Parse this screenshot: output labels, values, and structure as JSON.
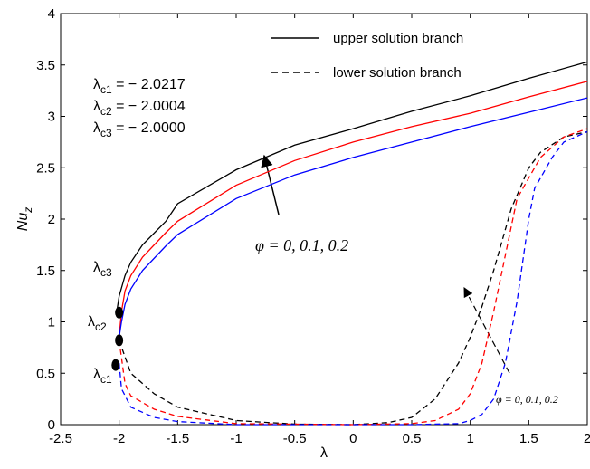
{
  "chart_data": {
    "type": "line",
    "xlabel": "λ",
    "ylabel": {
      "base": "Nu",
      "sub": "z"
    },
    "xlim": [
      -2.5,
      2
    ],
    "xticks": [
      -2.5,
      -2,
      -1.5,
      -1,
      -0.5,
      0,
      0.5,
      1,
      1.5,
      2
    ],
    "ylim": [
      0,
      4
    ],
    "yticks": [
      0,
      0.5,
      1,
      1.5,
      2,
      2.5,
      3,
      3.5,
      4
    ],
    "legend": [
      {
        "label": "upper solution branch",
        "dash": false
      },
      {
        "label": "lower solution branch",
        "dash": true
      }
    ],
    "series": [
      {
        "color": "#000000",
        "dash": false,
        "x": [
          -2.0217,
          -2.0,
          -1.95,
          -1.9,
          -1.8,
          -1.6,
          -1.5,
          -1.0,
          -0.5,
          0,
          0.5,
          1.0,
          1.5,
          2.0
        ],
        "values": [
          1.09,
          1.25,
          1.45,
          1.58,
          1.75,
          1.98,
          2.15,
          2.48,
          2.72,
          2.88,
          3.05,
          3.2,
          3.37,
          3.53
        ]
      },
      {
        "color": "#ff0000",
        "dash": false,
        "x": [
          -2.0004,
          -1.98,
          -1.95,
          -1.9,
          -1.8,
          -1.6,
          -1.5,
          -1.0,
          -0.5,
          0,
          0.5,
          1.0,
          1.5,
          2.0
        ],
        "values": [
          0.85,
          1.1,
          1.3,
          1.45,
          1.63,
          1.87,
          1.98,
          2.33,
          2.57,
          2.75,
          2.9,
          3.03,
          3.19,
          3.34
        ]
      },
      {
        "color": "#0000ff",
        "dash": false,
        "x": [
          -2.0,
          -1.98,
          -1.95,
          -1.9,
          -1.8,
          -1.6,
          -1.5,
          -1.0,
          -0.5,
          0,
          0.5,
          1.0,
          1.5,
          2.0
        ],
        "values": [
          0.85,
          1.0,
          1.17,
          1.32,
          1.5,
          1.74,
          1.85,
          2.2,
          2.43,
          2.6,
          2.75,
          2.9,
          3.04,
          3.18
        ]
      },
      {
        "color": "#000000",
        "dash": true,
        "x": [
          -2.0,
          -1.9,
          -1.7,
          -1.5,
          -1.0,
          -0.5,
          0,
          0.3,
          0.5,
          0.7,
          0.9,
          1.0,
          1.1,
          1.2,
          1.35,
          1.5,
          1.6,
          1.8,
          2.0
        ],
        "values": [
          0.82,
          0.5,
          0.3,
          0.17,
          0.04,
          0.005,
          0,
          0.02,
          0.07,
          0.25,
          0.6,
          0.85,
          1.15,
          1.5,
          2.1,
          2.5,
          2.65,
          2.8,
          2.85
        ]
      },
      {
        "color": "#ff0000",
        "dash": true,
        "x": [
          -2.0,
          -1.95,
          -1.9,
          -1.7,
          -1.5,
          -1.0,
          0,
          0.5,
          0.7,
          0.9,
          1.0,
          1.1,
          1.2,
          1.3,
          1.4,
          1.5,
          1.6,
          1.8,
          2.0
        ],
        "values": [
          0.82,
          0.4,
          0.28,
          0.15,
          0.08,
          0.01,
          0,
          0.01,
          0.04,
          0.15,
          0.3,
          0.6,
          1.1,
          1.65,
          2.2,
          2.4,
          2.6,
          2.8,
          2.88
        ]
      },
      {
        "color": "#0000ff",
        "dash": true,
        "x": [
          -2.0,
          -1.98,
          -1.9,
          -1.7,
          -1.5,
          -1.0,
          0.5,
          0.9,
          1.0,
          1.1,
          1.2,
          1.3,
          1.4,
          1.5,
          1.55,
          1.7,
          1.8,
          2.0
        ],
        "values": [
          0.6,
          0.35,
          0.17,
          0.07,
          0.03,
          0,
          0,
          0.01,
          0.04,
          0.1,
          0.25,
          0.6,
          1.2,
          2.0,
          2.3,
          2.6,
          2.75,
          2.85
        ]
      }
    ],
    "critical_points": {
      "x": [
        -2.03,
        -2.0,
        -2.0
      ],
      "y": [
        0.58,
        0.82,
        1.09
      ]
    },
    "point_labels": [
      {
        "base": "λ",
        "sub": "c1"
      },
      {
        "base": "λ",
        "sub": "c2"
      },
      {
        "base": "λ",
        "sub": "c3"
      }
    ],
    "critical_values": [
      {
        "base": "λ",
        "sub": "c1",
        "text": " = − 2.0217"
      },
      {
        "base": "λ",
        "sub": "c2",
        "text": " = − 2.0004"
      },
      {
        "base": "λ",
        "sub": "c3",
        "text": " = − 2.0000"
      }
    ],
    "phi_labels": [
      "φ = 0, 0.1, 0.2",
      "φ = 0, 0.1, 0.2"
    ]
  }
}
